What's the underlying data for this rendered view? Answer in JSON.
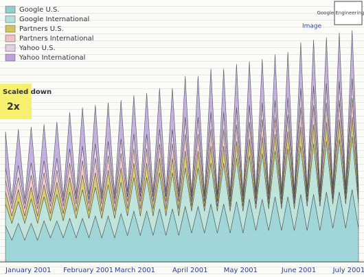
{
  "chart_data": {
    "type": "area",
    "stacked": true,
    "categories": [
      "January 2001",
      null,
      null,
      null,
      null,
      null,
      null,
      null,
      null,
      "February 2001",
      null,
      null,
      null,
      null,
      null,
      null,
      null,
      "March 2001",
      null,
      null,
      null,
      null,
      null,
      null,
      null,
      null,
      "April 2001",
      null,
      null,
      null,
      null,
      null,
      null,
      null,
      "May 2001",
      null,
      null,
      null,
      null,
      null,
      null,
      null,
      null,
      "June 2001",
      null,
      null,
      null,
      null,
      null,
      null,
      null,
      "July 2001",
      null,
      null,
      null,
      null
    ],
    "ylim": [
      0,
      100
    ],
    "series": [
      {
        "name": "Google U.S.",
        "color": "#8fcfd2",
        "values": [
          15,
          9,
          16,
          9,
          16,
          9,
          17,
          10,
          17,
          10,
          18,
          10,
          18,
          10,
          19,
          10,
          19,
          10,
          20,
          11,
          21,
          11,
          21,
          11,
          22,
          11,
          22,
          11,
          23,
          12,
          23,
          12,
          24,
          12,
          24,
          12,
          25,
          12,
          26,
          13,
          26,
          13,
          27,
          13,
          27,
          13,
          28,
          13,
          28,
          13,
          29,
          14,
          29,
          14,
          30,
          14
        ]
      },
      {
        "name": "Google International",
        "color": "#b3dfd6",
        "values": [
          9,
          7,
          9,
          7,
          10,
          7,
          10,
          7,
          11,
          7,
          11,
          8,
          12,
          8,
          12,
          8,
          13,
          8,
          13,
          8,
          14,
          8,
          14,
          8,
          15,
          8,
          15,
          8,
          16,
          9,
          16,
          9,
          17,
          9,
          17,
          9,
          18,
          9,
          18,
          9,
          19,
          9,
          19,
          9,
          20,
          9,
          20,
          10,
          21,
          10,
          21,
          10,
          22,
          10,
          22,
          10
        ]
      },
      {
        "name": "Partners U.S.",
        "color": "#cfc65a",
        "values": [
          5,
          3,
          5,
          3,
          5,
          3,
          5,
          3,
          5,
          3,
          6,
          3,
          6,
          3,
          6,
          3,
          6,
          3,
          6,
          3,
          6,
          3,
          6,
          3,
          6,
          3,
          6,
          3,
          7,
          2,
          7,
          2,
          7,
          2,
          7,
          2,
          7,
          2,
          7,
          2,
          7,
          2,
          7,
          2,
          7,
          2,
          8,
          2,
          8,
          2,
          8,
          2,
          8,
          2,
          8,
          2
        ]
      },
      {
        "name": "Partners International",
        "color": "#efc0c4",
        "values": [
          5,
          3,
          5,
          3,
          5,
          3,
          5,
          3,
          5,
          3,
          6,
          3,
          6,
          3,
          6,
          3,
          6,
          3,
          6,
          3,
          6,
          3,
          6,
          3,
          6,
          3,
          6,
          3,
          7,
          2,
          7,
          2,
          7,
          2,
          7,
          2,
          7,
          2,
          7,
          2,
          7,
          2,
          7,
          2,
          7,
          2,
          8,
          2,
          8,
          2,
          8,
          2,
          8,
          2,
          8,
          2
        ]
      },
      {
        "name": "Yahoo U.S.",
        "color": "#e4cde4",
        "values": [
          5,
          2,
          5,
          2,
          5,
          2,
          5,
          2,
          5,
          2,
          6,
          2,
          6,
          2,
          6,
          2,
          6,
          2,
          6,
          2,
          6,
          2,
          6,
          2,
          6,
          2,
          6,
          2,
          7,
          2,
          7,
          2,
          7,
          2,
          7,
          2,
          7,
          2,
          7,
          2,
          7,
          2,
          7,
          2,
          7,
          2,
          8,
          2,
          8,
          2,
          8,
          2,
          8,
          2,
          8,
          2
        ]
      },
      {
        "name": "Yahoo International",
        "color": "#b9a3da",
        "values": [
          15,
          2,
          15,
          2,
          15,
          2,
          15,
          2,
          15,
          2,
          15,
          2,
          16,
          2,
          16,
          2,
          16,
          2,
          16,
          2,
          16,
          2,
          17,
          2,
          17,
          2,
          17,
          2,
          17,
          1,
          17,
          1,
          18,
          1,
          18,
          1,
          18,
          1,
          18,
          1,
          18,
          1,
          19,
          1,
          19,
          1,
          19,
          1,
          19,
          1,
          19,
          1,
          20,
          1,
          20,
          1
        ]
      }
    ],
    "annotations": [
      "Scaled down",
      "2x",
      "Google Engineering Room",
      "Image"
    ]
  }
}
